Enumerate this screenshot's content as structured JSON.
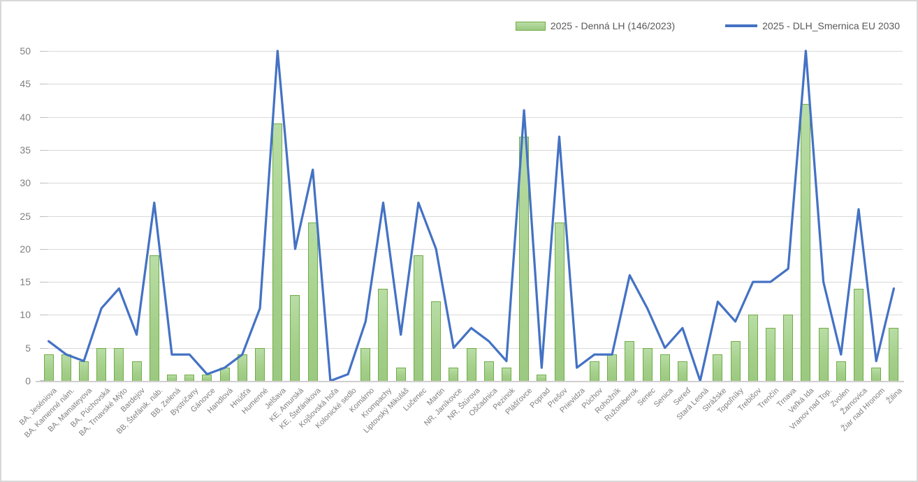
{
  "legend": {
    "bar_series_label": "2025 - Denná LH (146/2023)",
    "line_series_label": "2025 - DLH_Smernica EU 2030"
  },
  "chart_data": {
    "type": "bar",
    "subtype": "combo-bar-line",
    "title": "",
    "xlabel": "",
    "ylabel": "",
    "ylim": [
      0,
      50
    ],
    "y_ticks": [
      0,
      5,
      10,
      15,
      20,
      25,
      30,
      35,
      40,
      45,
      50
    ],
    "grid": true,
    "legend_position": "top-right",
    "categories": [
      "BA, Jeséniova",
      "BA, Kamenné nám.",
      "BA, Mamateyova",
      "BA, Púchovská",
      "BA, Trnavské Mýto",
      "Bardejov",
      "BB, Štefánik. náb.",
      "BB, Zelená",
      "Bystričany",
      "Gánovce",
      "Handlová",
      "Hnúšťa",
      "Humenné",
      "Jelšava",
      "KE, Amurská",
      "KE, Štefánikova",
      "Kojšovská hoľa",
      "Kolonické sedlo",
      "Komárno",
      "Krompachy",
      "Liptovský Mikuláš",
      "Lučenec",
      "Martin",
      "NR, Janíkovce",
      "NR, Štúrova",
      "Oščadnica",
      "Pezinok",
      "Plášťovce",
      "Poprad",
      "Prešov",
      "Prievidza",
      "Púchov",
      "Rohožník",
      "Ružomberok",
      "Senec",
      "Senica",
      "Sereď",
      "Stará Lesná",
      "Strážske",
      "Topoľníky",
      "Trebišov",
      "Trenčín",
      "Trnava",
      "Veľká Ida",
      "Vranov nad Top.",
      "Zvolen",
      "Žarnovica",
      "Žiar nad Hronom",
      "Žilina"
    ],
    "series": [
      {
        "name": "2025 - Denná LH (146/2023)",
        "type": "bar",
        "fill_color": "#a9d18e",
        "border_color": "#70ad47",
        "values": [
          4,
          4,
          3,
          5,
          5,
          3,
          19,
          1,
          1,
          1,
          2,
          4,
          5,
          39,
          13,
          24,
          0,
          0,
          5,
          14,
          2,
          19,
          12,
          2,
          5,
          3,
          2,
          37,
          1,
          24,
          0,
          3,
          4,
          6,
          5,
          4,
          3,
          0,
          4,
          6,
          10,
          8,
          10,
          42,
          8,
          3,
          14,
          2,
          8
        ]
      },
      {
        "name": "2025 - DLH_Smernica EU 2030",
        "type": "line",
        "color": "#4472c4",
        "values": [
          6,
          4,
          3,
          11,
          14,
          7,
          27,
          4,
          4,
          1,
          2,
          4,
          11,
          50,
          20,
          32,
          0,
          1,
          9,
          27,
          7,
          27,
          20,
          5,
          8,
          6,
          3,
          41,
          2,
          37,
          2,
          4,
          4,
          16,
          11,
          5,
          8,
          0,
          12,
          9,
          15,
          15,
          17,
          50,
          15,
          4,
          26,
          3,
          14
        ]
      }
    ],
    "colors": {
      "gridline": "#d9d9d9",
      "axis_line": "#d0cece",
      "axis_text": "#7f7f7f",
      "legend_text": "#595959",
      "background": "#ffffff"
    }
  }
}
